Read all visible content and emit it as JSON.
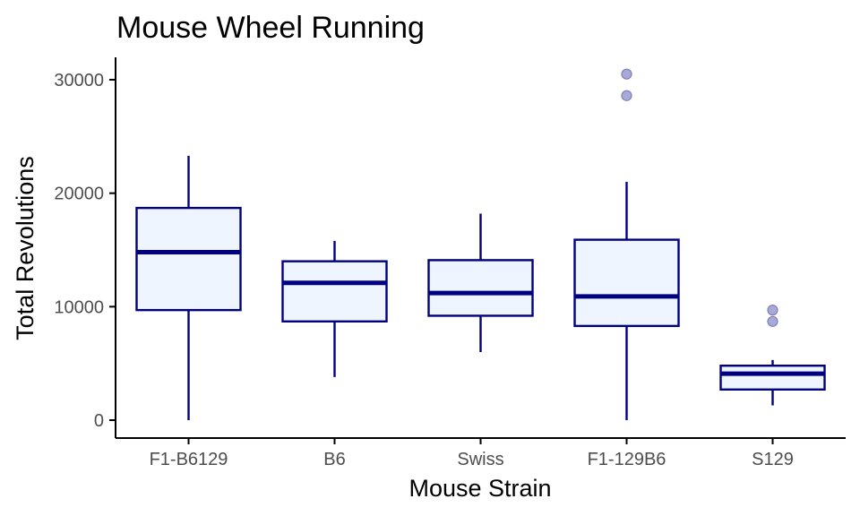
{
  "chart_data": {
    "type": "box",
    "title": "Mouse Wheel Running",
    "xlabel": "Mouse Strain",
    "ylabel": "Total Revolutions",
    "ylim": [
      -1500,
      32000
    ],
    "yticks": [
      0,
      10000,
      20000,
      30000
    ],
    "ytick_labels": [
      "0",
      "10000",
      "20000",
      "30000"
    ],
    "grid": false,
    "legend": "none",
    "categories": [
      "F1-B6129",
      "B6",
      "Swiss",
      "F1-129B6",
      "S129"
    ],
    "boxes": [
      {
        "category": "F1-B6129",
        "whisker_low": 0,
        "q1": 9700,
        "median": 14800,
        "q3": 18700,
        "whisker_high": 23300,
        "outliers": []
      },
      {
        "category": "B6",
        "whisker_low": 3800,
        "q1": 8700,
        "median": 12100,
        "q3": 14000,
        "whisker_high": 15800,
        "outliers": []
      },
      {
        "category": "Swiss",
        "whisker_low": 6000,
        "q1": 9200,
        "median": 11200,
        "q3": 14100,
        "whisker_high": 18200,
        "outliers": []
      },
      {
        "category": "F1-129B6",
        "whisker_low": 0,
        "q1": 8300,
        "median": 10900,
        "q3": 15900,
        "whisker_high": 21000,
        "outliers": [
          28600,
          30500
        ]
      },
      {
        "category": "S129",
        "whisker_low": 1300,
        "q1": 2700,
        "median": 4100,
        "q3": 4800,
        "whisker_high": 5300,
        "outliers": [
          8700,
          9700
        ]
      }
    ],
    "colors": {
      "box_fill": "#eef5ff",
      "box_stroke": "#000080",
      "outlier_fill": "#a9a9d6",
      "outlier_stroke": "#7f7fc0",
      "axis": "#000000",
      "tick_label": "#4d4d4d"
    }
  }
}
